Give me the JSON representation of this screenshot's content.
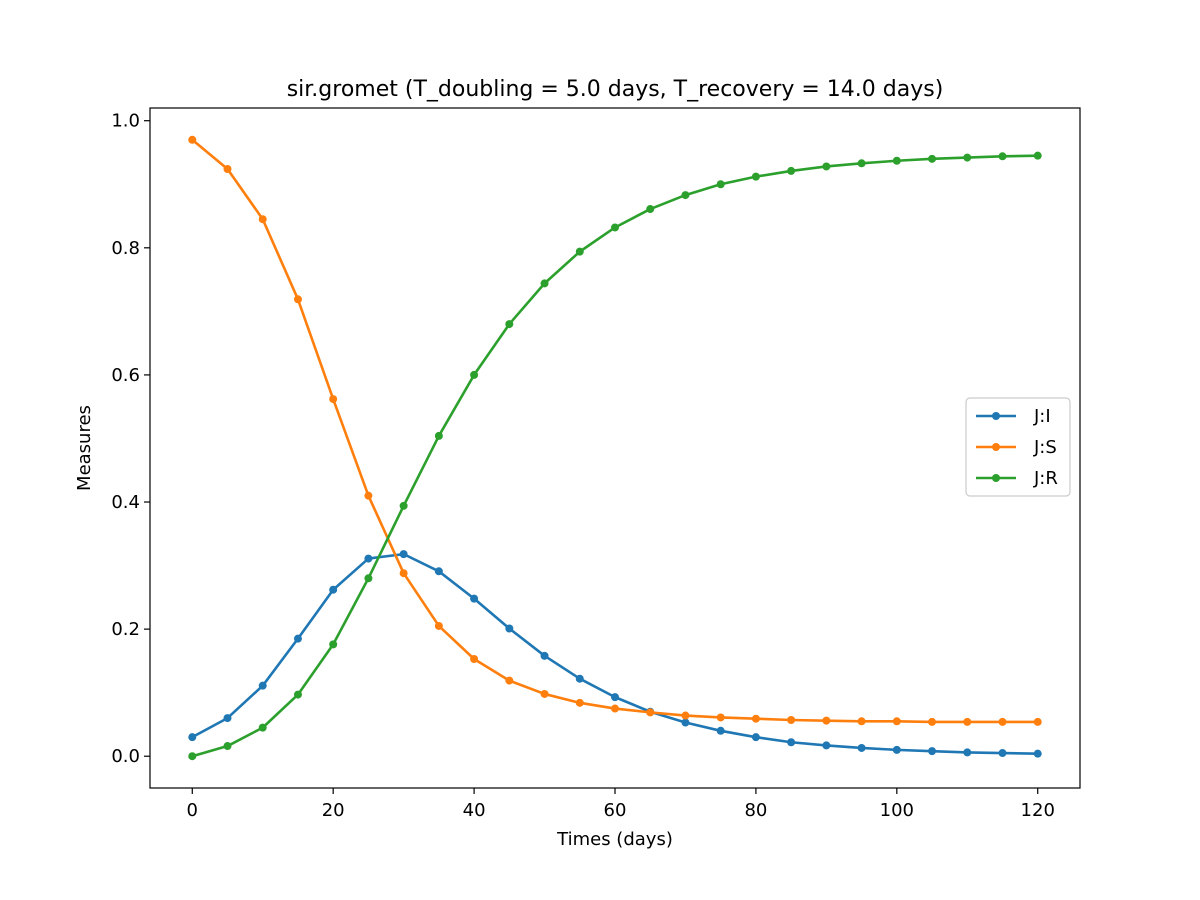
{
  "chart_data": {
    "type": "line",
    "title": "sir.gromet (T_doubling = 5.0 days, T_recovery = 14.0 days)",
    "xlabel": "Times (days)",
    "ylabel": "Measures",
    "xlim": [
      -6,
      126
    ],
    "ylim": [
      -0.05,
      1.02
    ],
    "xticks": [
      0,
      20,
      40,
      60,
      80,
      100,
      120
    ],
    "yticks": [
      0.0,
      0.2,
      0.4,
      0.6,
      0.8,
      1.0
    ],
    "xtick_labels": [
      "0",
      "20",
      "40",
      "60",
      "80",
      "100",
      "120"
    ],
    "ytick_labels": [
      "0.0",
      "0.2",
      "0.4",
      "0.6",
      "0.8",
      "1.0"
    ],
    "grid": false,
    "legend_position": "center-right",
    "x": [
      0,
      5,
      10,
      15,
      20,
      25,
      30,
      35,
      40,
      45,
      50,
      55,
      60,
      65,
      70,
      75,
      80,
      85,
      90,
      95,
      100,
      105,
      110,
      115,
      120
    ],
    "series": [
      {
        "name": "J:I",
        "color": "#1f77b4",
        "values": [
          0.03,
          0.06,
          0.111,
          0.185,
          0.262,
          0.311,
          0.318,
          0.291,
          0.248,
          0.201,
          0.158,
          0.122,
          0.093,
          0.07,
          0.053,
          0.04,
          0.03,
          0.022,
          0.017,
          0.013,
          0.01,
          0.008,
          0.006,
          0.005,
          0.004
        ]
      },
      {
        "name": "J:S",
        "color": "#ff7f0e",
        "values": [
          0.97,
          0.924,
          0.845,
          0.719,
          0.562,
          0.41,
          0.288,
          0.205,
          0.153,
          0.119,
          0.098,
          0.084,
          0.075,
          0.069,
          0.064,
          0.061,
          0.059,
          0.057,
          0.056,
          0.055,
          0.055,
          0.054,
          0.054,
          0.054,
          0.054
        ]
      },
      {
        "name": "J:R",
        "color": "#2ca02c",
        "values": [
          0.0,
          0.016,
          0.045,
          0.097,
          0.176,
          0.28,
          0.394,
          0.504,
          0.6,
          0.68,
          0.744,
          0.794,
          0.832,
          0.861,
          0.883,
          0.9,
          0.912,
          0.921,
          0.928,
          0.933,
          0.937,
          0.94,
          0.942,
          0.944,
          0.945
        ]
      }
    ]
  }
}
